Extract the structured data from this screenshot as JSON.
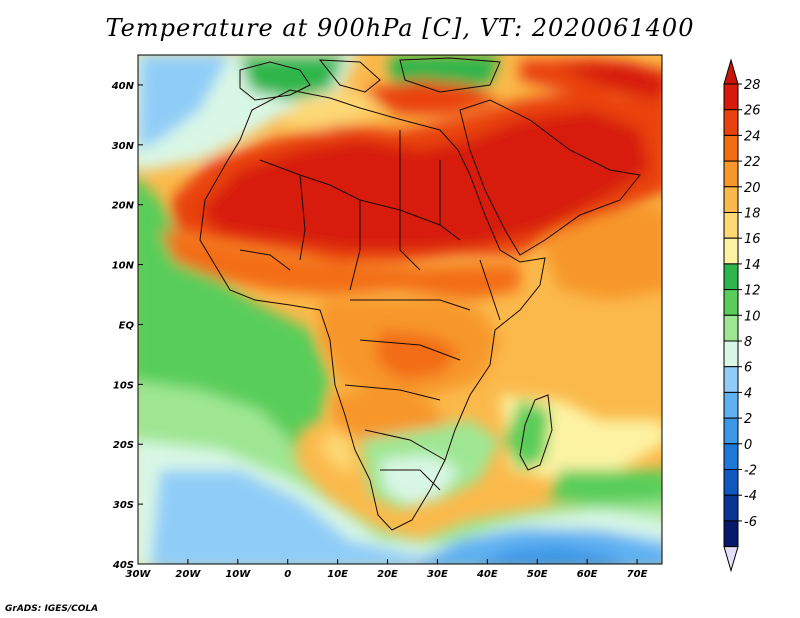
{
  "title": "Temperature at 900hPa [C], VT: 2020061400",
  "credit": "GrADS: IGES/COLA",
  "map": {
    "lon_range": [
      -30,
      75
    ],
    "lat_range": [
      -40,
      45
    ],
    "x_ticks": [
      "30W",
      "20W",
      "10W",
      "0",
      "10E",
      "20E",
      "30E",
      "40E",
      "50E",
      "60E",
      "70E"
    ],
    "y_ticks": [
      "40S",
      "30S",
      "20S",
      "10S",
      "EQ",
      "10N",
      "20N",
      "30N",
      "40N"
    ]
  },
  "colorbar": {
    "labels": [
      "28",
      "26",
      "24",
      "22",
      "20",
      "18",
      "16",
      "14",
      "12",
      "10",
      "8",
      "6",
      "4",
      "2",
      "0",
      "-2",
      "-4",
      "-6"
    ],
    "colors": [
      "#d71a0a",
      "#e9420f",
      "#f36d15",
      "#f7972a",
      "#fbb94b",
      "#fdd875",
      "#fdf3a3",
      "#2db64b",
      "#58cd5a",
      "#9fe693",
      "#d9f7e6",
      "#8fcdf8",
      "#5fb1f2",
      "#3c97e6",
      "#1d79d8",
      "#0f58c0",
      "#0a3596",
      "#08186b"
    ],
    "top_arrow_color": "#c61606",
    "bottom_arrow_color": "#e4e0fb"
  }
}
